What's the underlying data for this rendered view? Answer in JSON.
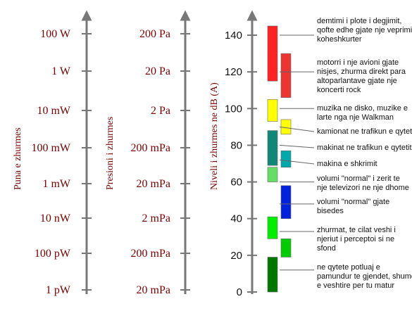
{
  "axes": {
    "power": {
      "title": "Puna e zhurmes",
      "labels": [
        "100 W",
        "1 W",
        "10 mW",
        "100 mW",
        "1 mW",
        "10 nW",
        "100 pW",
        "1 pW"
      ]
    },
    "pressure": {
      "title": "Presioni i zhurmes",
      "labels": [
        "200 Pa",
        "20 Pa",
        "2 Pa",
        "200 mPa",
        "20 mPa",
        "2 mPa",
        "200 mPa",
        "20  mPa"
      ]
    },
    "level": {
      "title": "Niveli i zhurmes ne dB (A)",
      "ticks": [
        "140",
        "120",
        "100",
        "80",
        "60",
        "40",
        "20",
        "0"
      ]
    }
  },
  "bars": [
    {
      "from": 115,
      "to": 145,
      "color": "#ff2222",
      "col": 1
    },
    {
      "from": 106,
      "to": 130,
      "color": "#ee3333",
      "col": 2
    },
    {
      "from": 93,
      "to": 105,
      "color": "#ffff00",
      "col": 1
    },
    {
      "from": 86,
      "to": 94,
      "color": "#ffff00",
      "col": 2
    },
    {
      "from": 69,
      "to": 88,
      "color": "#118877",
      "col": 1
    },
    {
      "from": 68,
      "to": 77,
      "color": "#00aaaa",
      "col": 2
    },
    {
      "from": 60,
      "to": 68,
      "color": "#66dd66",
      "col": 1
    },
    {
      "from": 40,
      "to": 58,
      "color": "#0022dd",
      "col": 2
    },
    {
      "from": 29,
      "to": 41,
      "color": "#00ee00",
      "col": 1
    },
    {
      "from": 19,
      "to": 29,
      "color": "#00cc00",
      "col": 2
    },
    {
      "from": 0,
      "to": 19,
      "color": "#007700",
      "col": 1
    }
  ],
  "annotations": [
    {
      "level": 140,
      "lines": [
        "demtimi i plote i degjimit,",
        "qofte edhe gjate nje veprimi",
        "koheshkurter"
      ]
    },
    {
      "level": 120,
      "lines": [
        "motorri i nje avioni gjate",
        "nisjes, zhurma direkt para",
        "altoparlantave gjate nje",
        "koncerti rock"
      ]
    },
    {
      "level": 100,
      "lines": [
        "muzika ne disko, muzike e",
        "larte nga nje Walkman"
      ]
    },
    {
      "level": 90,
      "lines": [
        "kamionat ne trafikun e qytet"
      ]
    },
    {
      "level": 80,
      "lines": [
        "makinat ne trafikun e qytetit"
      ]
    },
    {
      "level": 72,
      "lines": [
        "makina e shkrimit"
      ]
    },
    {
      "level": 60,
      "lines": [
        "volumi \"normal\" i zerit te",
        "nje televizori ne nje dhome"
      ]
    },
    {
      "level": 48,
      "lines": [
        "volumi \"normal\" gjate",
        "bisedes"
      ]
    },
    {
      "level": 33,
      "lines": [
        "zhurmat, te cilat veshi i",
        "njeriut i perceptoi si ne",
        "sfond"
      ]
    },
    {
      "level": 12,
      "lines": [
        "ne qytete potluaj e",
        "pamundur te gjendet, shume",
        "e veshtire per tu matur"
      ]
    }
  ]
}
